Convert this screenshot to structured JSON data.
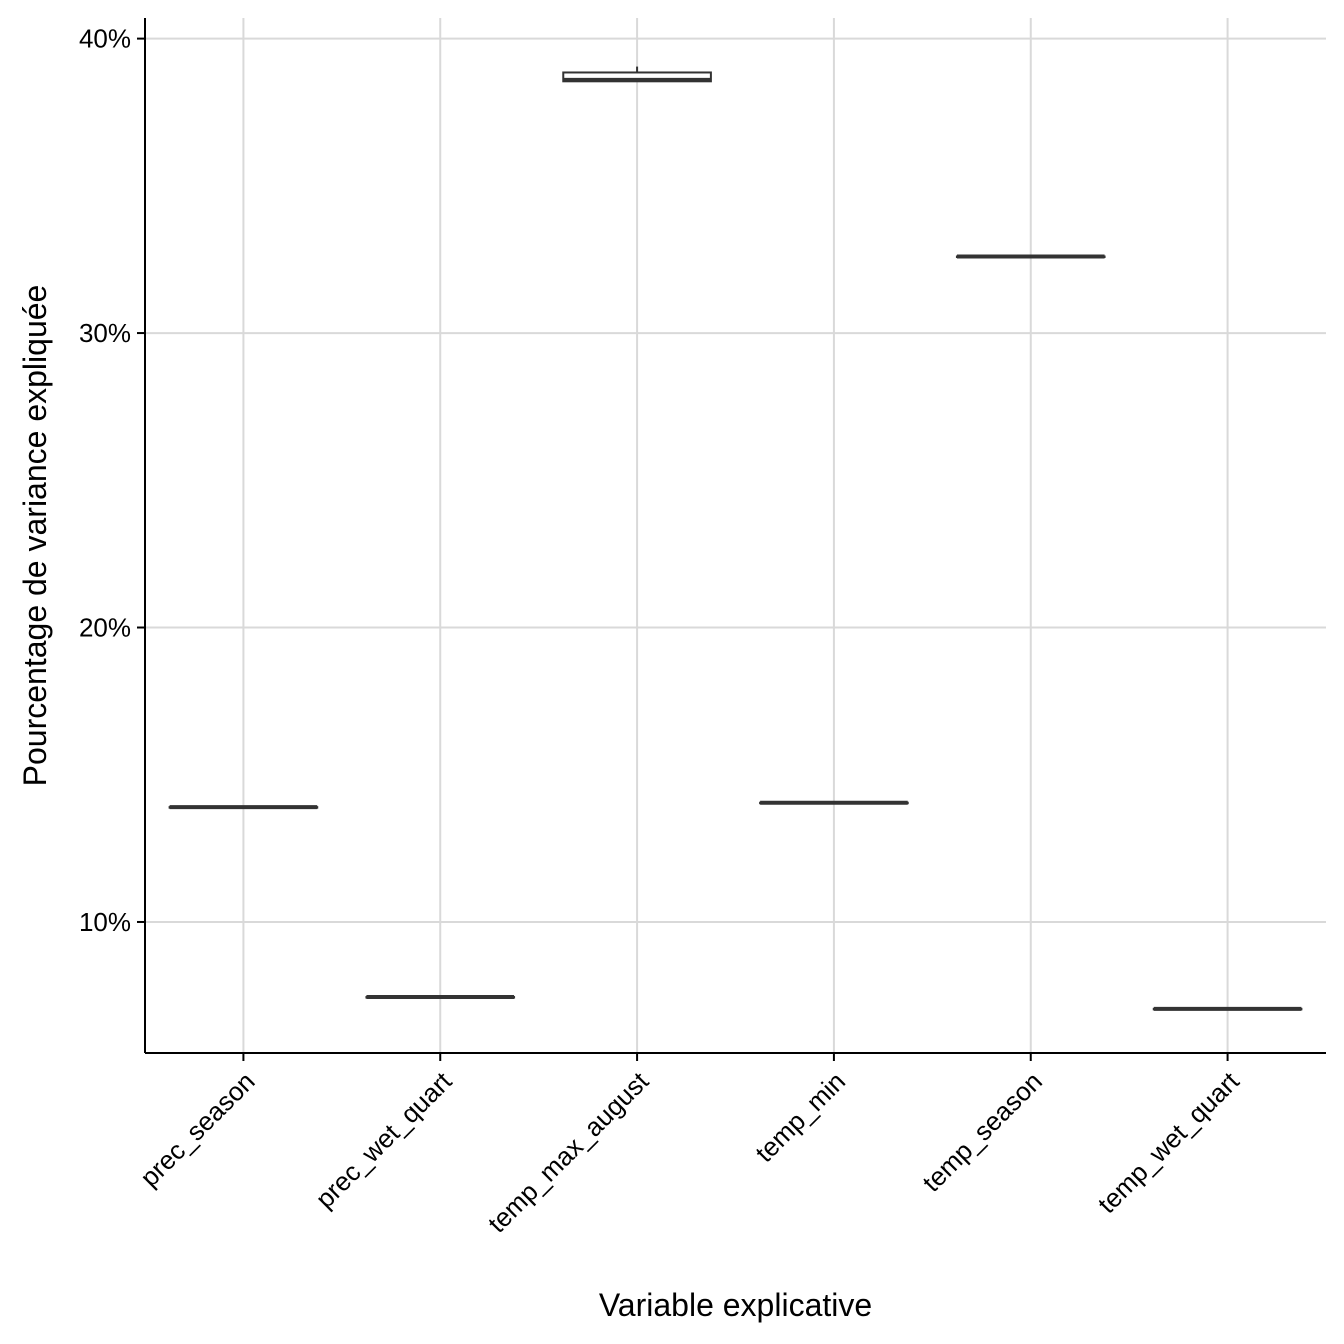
{
  "chart_data": {
    "type": "boxplot",
    "title": "",
    "xlabel": "Variable explicative",
    "ylabel": "Pourcentage de variance expliquée",
    "ylim": [
      5.55,
      40.7
    ],
    "y_ticks": [
      10,
      20,
      30,
      40
    ],
    "y_tick_labels": [
      "10%",
      "20%",
      "30%",
      "40%"
    ],
    "grid": true,
    "legend": "none",
    "categories": [
      "prec_season",
      "prec_wet_quart",
      "temp_max_august",
      "temp_min",
      "temp_season",
      "temp_wet_quart"
    ],
    "boxes": [
      {
        "category": "prec_season",
        "min": 13.9,
        "q1": 13.9,
        "median": 13.9,
        "q3": 13.9,
        "max": 13.9
      },
      {
        "category": "prec_wet_quart",
        "min": 7.45,
        "q1": 7.45,
        "median": 7.45,
        "q3": 7.45,
        "max": 7.45
      },
      {
        "category": "temp_max_august",
        "min": 38.55,
        "q1": 38.55,
        "median": 38.6,
        "q3": 38.85,
        "max": 39.05
      },
      {
        "category": "temp_min",
        "min": 14.05,
        "q1": 14.05,
        "median": 14.05,
        "q3": 14.05,
        "max": 14.05
      },
      {
        "category": "temp_season",
        "min": 32.6,
        "q1": 32.6,
        "median": 32.6,
        "q3": 32.6,
        "max": 32.6
      },
      {
        "category": "temp_wet_quart",
        "min": 7.05,
        "q1": 7.05,
        "median": 7.05,
        "q3": 7.05,
        "max": 7.05
      }
    ],
    "colors": {
      "box_line": "#333333",
      "box_fill": "#ffffff",
      "grid": "#d9d9d9",
      "axis": "#000000"
    }
  }
}
